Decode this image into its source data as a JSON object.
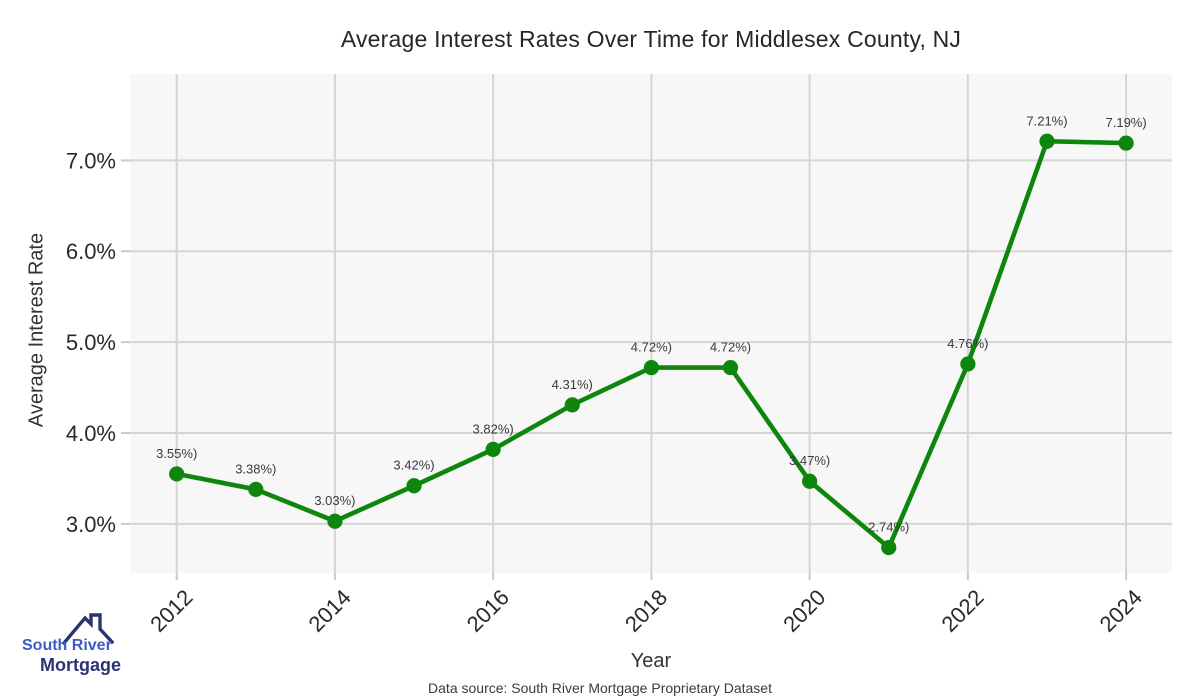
{
  "title": "Average Interest Rates Over Time for Middlesex County, NJ",
  "chart_data": {
    "type": "line",
    "x": [
      2012,
      2013,
      2014,
      2015,
      2016,
      2017,
      2018,
      2019,
      2020,
      2021,
      2022,
      2023,
      2024
    ],
    "values": [
      3.55,
      3.38,
      3.03,
      3.42,
      3.82,
      4.31,
      4.72,
      4.72,
      3.47,
      2.74,
      4.76,
      7.21,
      7.19
    ],
    "point_labels": [
      "3.55%)",
      "3.38%)",
      "3.03%)",
      "3.42%)",
      "3.82%)",
      "4.31%)",
      "4.72%)",
      "4.72%)",
      "3.47%)",
      "2.74%)",
      "4.76%)",
      "7.21%)",
      "7.19%)"
    ],
    "title": "Average Interest Rates Over Time for Middlesex County, NJ",
    "xlabel": "Year",
    "ylabel": "Average Interest Rate",
    "xticks": [
      2012,
      2014,
      2016,
      2018,
      2020,
      2022,
      2024
    ],
    "yticks": [
      {
        "value": 3.0,
        "label": "3.0%"
      },
      {
        "value": 4.0,
        "label": "4.0%"
      },
      {
        "value": 5.0,
        "label": "5.0%"
      },
      {
        "value": 6.0,
        "label": "6.0%"
      },
      {
        "value": 7.0,
        "label": "7.0%"
      }
    ],
    "xlim": [
      2011.41,
      2024.58
    ],
    "ylim": [
      2.46,
      7.95
    ],
    "grid": true,
    "legend": "none",
    "colors": {
      "line": "#0e860e",
      "marker": "#0e860e",
      "plot_bg": "#f7f7f7",
      "grid": "#d5d5d5",
      "tick_mark": "#c9c9c9",
      "tick_label": "#2a2a2a",
      "data_label": "#3a3a3a"
    }
  },
  "footer": {
    "caption": "Data source: South River Mortgage Proprietary Dataset"
  },
  "logo": {
    "line1": "South River",
    "line2": "Mortgage",
    "line1_color": "#3e5bc6",
    "line2_color": "#2b3373",
    "roof_color": "#2b3373",
    "roof_icon": "house-roof-with-chimney"
  }
}
